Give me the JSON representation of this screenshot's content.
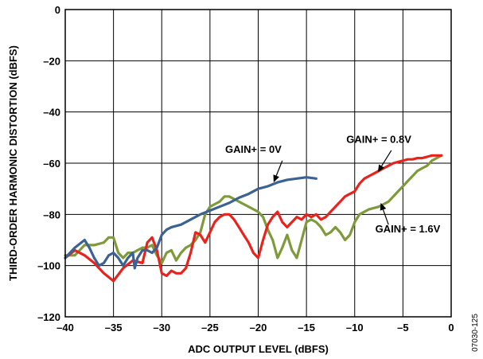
{
  "chart_data": {
    "type": "line",
    "title": "",
    "xlabel": "ADC OUTPUT LEVEL (dBFS)",
    "ylabel": "THIRD-ORDER HARMONIC DISTORTION (dBFS)",
    "xlim": [
      -40,
      0
    ],
    "ylim": [
      -120,
      0
    ],
    "xticks": [
      -40,
      -35,
      -30,
      -25,
      -20,
      -15,
      -10,
      -5,
      0
    ],
    "yticks": [
      0,
      -20,
      -40,
      -60,
      -80,
      -100,
      -120
    ],
    "xtick_labels": [
      "–40",
      "–35",
      "–30",
      "–25",
      "–20",
      "–15",
      "–10",
      "–5",
      "0"
    ],
    "ytick_labels": [
      "0",
      "–20",
      "–40",
      "–60",
      "–80",
      "–100",
      "–120"
    ],
    "grid": true,
    "figure_code": "07030-125",
    "series": [
      {
        "name": "GAIN+ = 0V",
        "color": "#3b6293",
        "x": [
          -40,
          -39,
          -38,
          -37.5,
          -37,
          -36.5,
          -36,
          -35.5,
          -35,
          -34.5,
          -34,
          -33.5,
          -33,
          -32.8,
          -32.5,
          -32,
          -31.5,
          -31,
          -30.5,
          -30,
          -29.5,
          -29,
          -28,
          -27,
          -26,
          -25,
          -24,
          -23,
          -22,
          -21,
          -20,
          -19,
          -18,
          -17,
          -16,
          -15,
          -14
        ],
        "y": [
          -97,
          -93,
          -90,
          -93,
          -97,
          -100,
          -99,
          -96,
          -95,
          -97,
          -100,
          -97,
          -95,
          -101,
          -97,
          -94,
          -94,
          -95,
          -93,
          -88,
          -86,
          -85,
          -84,
          -82,
          -80,
          -78.5,
          -77,
          -75.5,
          -73.5,
          -72,
          -70,
          -69,
          -67.5,
          -66.5,
          -66,
          -65.5,
          -66
        ]
      },
      {
        "name": "GAIN+ = 0.8V",
        "color": "#e8231e",
        "x": [
          -40,
          -39,
          -38,
          -37,
          -36,
          -35,
          -34,
          -33,
          -32,
          -31.5,
          -31,
          -30.5,
          -30,
          -29.5,
          -29,
          -28.5,
          -28,
          -27.5,
          -27,
          -26.5,
          -26,
          -25.5,
          -25,
          -24.5,
          -24,
          -23.5,
          -23,
          -22.5,
          -22,
          -21.5,
          -21,
          -20.5,
          -20,
          -19.5,
          -19,
          -18.5,
          -18,
          -17.5,
          -17,
          -16.5,
          -16,
          -15.5,
          -15,
          -14.5,
          -14,
          -13.5,
          -13,
          -12.5,
          -12,
          -11.5,
          -11,
          -10.5,
          -10,
          -9.5,
          -9,
          -8.5,
          -8,
          -7.5,
          -7,
          -6.5,
          -6,
          -5.5,
          -5,
          -4.5,
          -4,
          -3.5,
          -3,
          -2.5,
          -2,
          -1.5,
          -1
        ],
        "y": [
          -97,
          -94,
          -96,
          -99,
          -103,
          -106,
          -101,
          -98,
          -99,
          -91,
          -89,
          -94,
          -103,
          -104,
          -102,
          -103,
          -103,
          -101,
          -95,
          -87,
          -88,
          -91,
          -87,
          -83,
          -81,
          -80,
          -80,
          -82,
          -85,
          -88,
          -91,
          -95,
          -97,
          -90,
          -84,
          -81,
          -79,
          -83,
          -85,
          -83,
          -81,
          -82,
          -80,
          -81,
          -80,
          -82,
          -81,
          -79,
          -77,
          -75,
          -73,
          -72,
          -71,
          -68,
          -66,
          -65,
          -64,
          -63,
          -62,
          -61,
          -60,
          -59.5,
          -59,
          -58.5,
          -58.5,
          -58,
          -58,
          -57.5,
          -57,
          -57,
          -57
        ]
      },
      {
        "name": "GAIN+ = 1.6V",
        "color": "#7e9a3a",
        "x": [
          -40,
          -39,
          -38,
          -37,
          -36,
          -35.5,
          -35,
          -34.5,
          -34,
          -33.5,
          -33,
          -32.5,
          -32,
          -31.5,
          -31,
          -30.5,
          -30,
          -29.5,
          -29,
          -28.5,
          -28,
          -27.5,
          -27,
          -26.5,
          -26,
          -25.5,
          -25,
          -24.5,
          -24,
          -23.5,
          -23,
          -22.5,
          -22,
          -21.5,
          -21,
          -20.5,
          -20,
          -19.5,
          -19,
          -18.5,
          -18,
          -17.5,
          -17,
          -16.5,
          -16,
          -15.5,
          -15,
          -14.5,
          -14,
          -13.5,
          -13,
          -12.5,
          -12,
          -11.5,
          -11,
          -10.5,
          -10,
          -9.5,
          -9,
          -8.5,
          -8,
          -7.5,
          -7,
          -6.5,
          -6,
          -5.5,
          -5,
          -4.5,
          -4,
          -3.5,
          -3,
          -2.5,
          -2,
          -1.5,
          -1
        ],
        "y": [
          -96,
          -96,
          -92,
          -92,
          -91,
          -89,
          -89,
          -95,
          -97,
          -95,
          -95,
          -94,
          -93,
          -93,
          -92,
          -96,
          -99,
          -95,
          -94,
          -98,
          -95,
          -93,
          -92,
          -90,
          -87,
          -80,
          -77,
          -76,
          -75,
          -73,
          -73,
          -74,
          -75,
          -76,
          -77,
          -78,
          -79,
          -81,
          -86,
          -90,
          -97,
          -93,
          -88,
          -94,
          -97,
          -90,
          -83,
          -82,
          -83,
          -85,
          -88,
          -87,
          -85,
          -87,
          -90,
          -88,
          -83,
          -80,
          -79,
          -78,
          -77.5,
          -77,
          -76,
          -75,
          -73,
          -71,
          -69,
          -67,
          -65,
          -63,
          -62,
          -61,
          -59,
          -58,
          -57
        ]
      }
    ],
    "annotations": [
      {
        "text": "GAIN+ = 0V",
        "x": -20.5,
        "y": -56
      },
      {
        "text": "GAIN+ = 0.8V",
        "x": -7.5,
        "y": -52
      },
      {
        "text": "GAIN+ = 1.6V",
        "x": -4.5,
        "y": -87
      }
    ]
  }
}
